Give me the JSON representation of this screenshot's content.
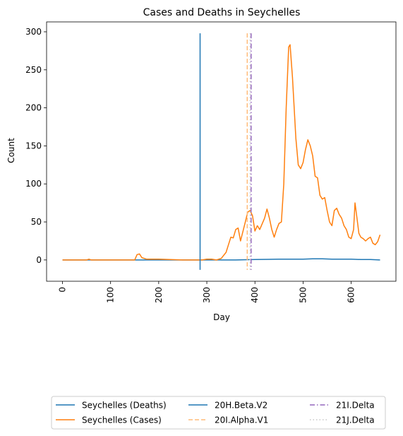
{
  "chart_data": {
    "type": "line",
    "title": "Cases and Deaths in Seychelles",
    "xlabel": "Day",
    "ylabel": "Count",
    "xlim": [
      -33,
      693
    ],
    "ylim": [
      -28,
      313
    ],
    "xticks": [
      0,
      100,
      200,
      300,
      400,
      500,
      600
    ],
    "yticks": [
      0,
      50,
      100,
      150,
      200,
      250,
      300
    ],
    "legend_position": "below plot, 3 columns",
    "series": [
      {
        "name": "Seychelles (Deaths)",
        "color": "#1f77b4",
        "x": [
          0,
          100,
          150,
          200,
          280,
          320,
          360,
          400,
          450,
          500,
          520,
          540,
          560,
          580,
          600,
          620,
          640,
          660
        ],
        "y": [
          0,
          0,
          0,
          0,
          0,
          0,
          0,
          0.5,
          1,
          1,
          1.5,
          1.5,
          1,
          1,
          1,
          0.5,
          0.5,
          0
        ]
      },
      {
        "name": "Seychelles (Cases)",
        "color": "#ff7f0e",
        "x": [
          0,
          50,
          55,
          60,
          100,
          150,
          155,
          160,
          165,
          175,
          200,
          250,
          290,
          300,
          310,
          320,
          330,
          340,
          345,
          350,
          355,
          360,
          365,
          370,
          380,
          385,
          390,
          395,
          400,
          405,
          410,
          420,
          425,
          430,
          435,
          440,
          445,
          450,
          455,
          460,
          465,
          470,
          473,
          478,
          485,
          490,
          495,
          500,
          505,
          510,
          515,
          520,
          525,
          530,
          535,
          540,
          545,
          550,
          555,
          560,
          565,
          570,
          575,
          580,
          585,
          590,
          595,
          600,
          605,
          608,
          612,
          616,
          620,
          625,
          630,
          635,
          640,
          645,
          650,
          655,
          660
        ],
        "y": [
          0,
          0,
          1,
          0,
          0,
          0,
          7,
          8,
          3,
          1,
          1,
          0,
          0,
          1,
          1,
          0,
          2,
          10,
          20,
          30,
          29,
          40,
          42,
          25,
          50,
          63,
          65,
          58,
          38,
          45,
          40,
          55,
          67,
          55,
          40,
          30,
          40,
          48,
          50,
          100,
          200,
          280,
          283,
          240,
          160,
          125,
          120,
          128,
          145,
          158,
          150,
          137,
          110,
          108,
          85,
          80,
          82,
          65,
          50,
          45,
          65,
          68,
          60,
          55,
          45,
          40,
          30,
          28,
          40,
          75,
          55,
          35,
          30,
          28,
          25,
          28,
          30,
          22,
          20,
          24,
          33
        ]
      }
    ],
    "vlines": [
      {
        "name": "20H.Beta.V2",
        "x": 286,
        "color": "#1f77b4",
        "style": "solid"
      },
      {
        "name": "20I.Alpha.V1",
        "x": 384,
        "color": "#ffbb78",
        "style": "dashed"
      },
      {
        "name": "21I.Delta",
        "x": 392,
        "color": "#9467bd",
        "style": "dashdot"
      },
      {
        "name": "21J.Delta",
        "x": 390,
        "color": "#c7c7c7",
        "style": "dotted"
      }
    ],
    "legend": [
      "Seychelles (Deaths)",
      "Seychelles (Cases)",
      "20H.Beta.V2",
      "20I.Alpha.V1",
      "21I.Delta",
      "21J.Delta"
    ]
  }
}
